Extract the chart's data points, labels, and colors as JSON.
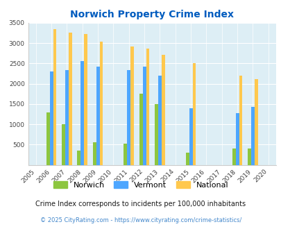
{
  "title": "Norwich Property Crime Index",
  "all_years": [
    2005,
    2006,
    2007,
    2008,
    2009,
    2010,
    2011,
    2012,
    2013,
    2014,
    2015,
    2016,
    2017,
    2018,
    2019,
    2020
  ],
  "years_with_data": [
    2006,
    2007,
    2008,
    2009,
    2011,
    2012,
    2013,
    2015,
    2018,
    2019
  ],
  "norwich": [
    1300,
    1000,
    350,
    560,
    530,
    1760,
    1500,
    300,
    400,
    400
  ],
  "vermont": [
    2300,
    2340,
    2560,
    2430,
    2340,
    2430,
    2200,
    1400,
    1280,
    1430
  ],
  "national": [
    3340,
    3260,
    3220,
    3040,
    2920,
    2860,
    2720,
    2500,
    2200,
    2110
  ],
  "norwich_color": "#8dc63f",
  "vermont_color": "#4da6ff",
  "national_color": "#ffc84d",
  "bg_color": "#ddeef5",
  "ylim": [
    0,
    3500
  ],
  "yticks": [
    0,
    500,
    1000,
    1500,
    2000,
    2500,
    3000,
    3500
  ],
  "title_color": "#005cbf",
  "subtitle": "Crime Index corresponds to incidents per 100,000 inhabitants",
  "footer": "© 2025 CityRating.com - https://www.cityrating.com/crime-statistics/",
  "subtitle_color": "#1a1a1a",
  "footer_color": "#4488cc"
}
